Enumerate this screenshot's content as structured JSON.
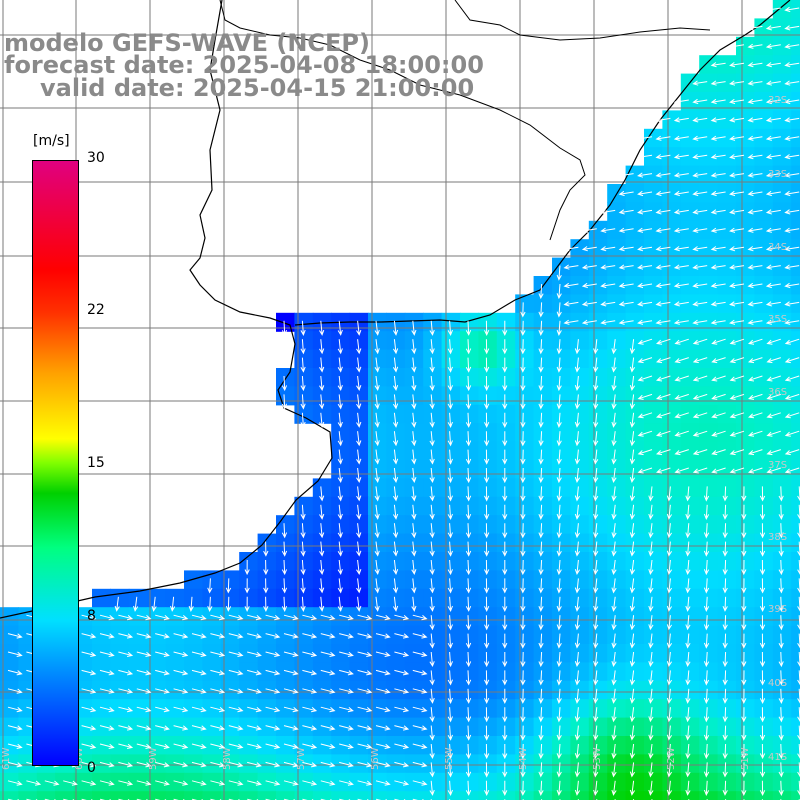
{
  "title": {
    "line1": "modelo GEFS-WAVE (NCEP)",
    "line2": "forecast date: 2025-04-08 18:00:00",
    "line3": "valid date: 2025-04-15 21:00:00"
  },
  "colorbar": {
    "unit": "[m/s]",
    "ticks": [
      "30",
      "22",
      "15",
      "8",
      "0"
    ],
    "tick_values": [
      30,
      22,
      15,
      8,
      0
    ],
    "colors": [
      "#0000ff",
      "#0080ff",
      "#00e0ff",
      "#00ff80",
      "#00d000",
      "#ffff00",
      "#ff3000",
      "#e00080"
    ]
  },
  "map": {
    "lat_labels": [
      "32S",
      "33S",
      "34S",
      "35S",
      "36S",
      "37S",
      "38S",
      "39S",
      "40S",
      "41S"
    ],
    "lon_labels": [
      "61W",
      "60W",
      "59W",
      "58W",
      "57W",
      "56W",
      "55W",
      "54W",
      "53W",
      "52W",
      "51W"
    ],
    "colors": {
      "land": "#ffffff",
      "grid": "#7a7a7a",
      "coast": "#000000",
      "arrow": "#ffffff",
      "label": "#c8c8c8"
    }
  }
}
